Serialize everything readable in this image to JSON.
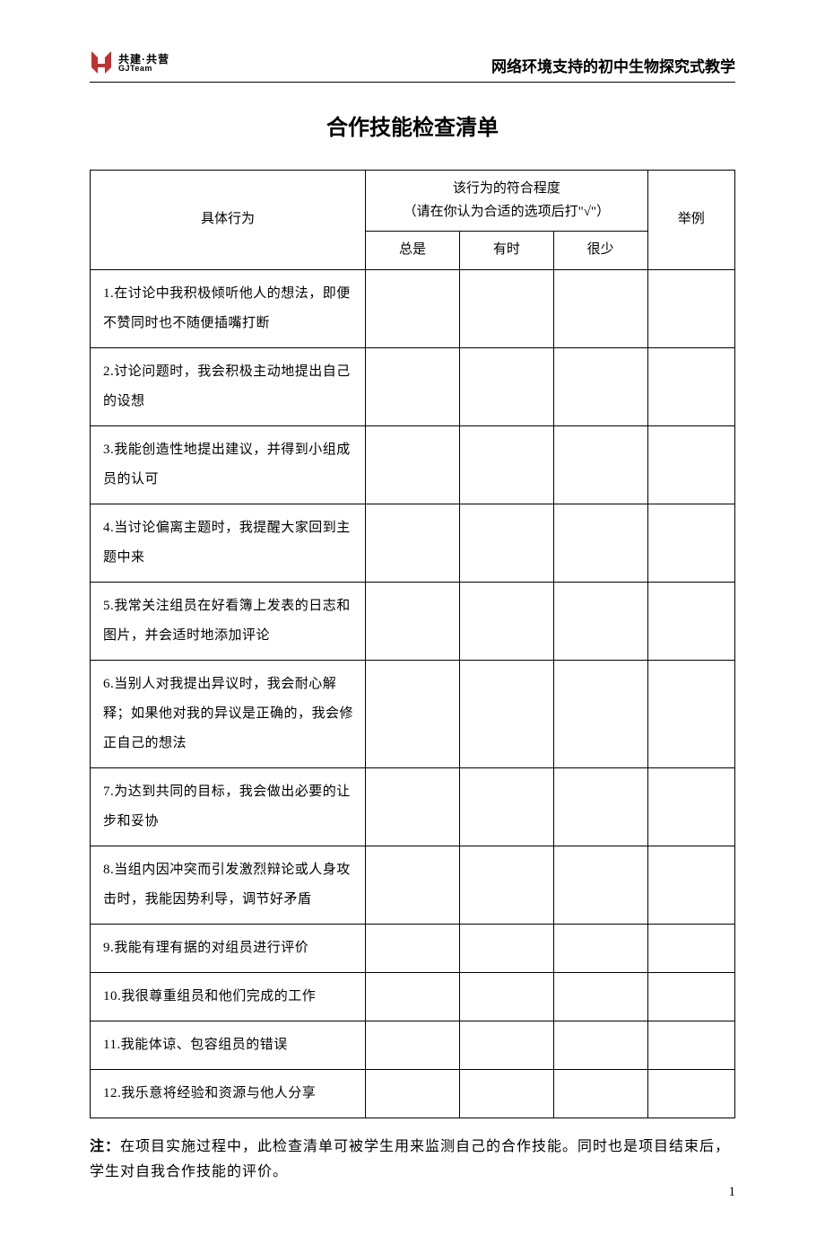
{
  "header": {
    "logo": {
      "text_top": "共建·共营",
      "text_bottom": "GJTeam",
      "mark_color": "#c52f2f"
    },
    "right_title": "网络环境支持的初中生物探究式教学"
  },
  "title": "合作技能检查清单",
  "table": {
    "headers": {
      "behavior": "具体行为",
      "degree_title": "该行为的符合程度",
      "degree_hint": "（请在你认为合适的选项后打\"√\"）",
      "opt_always": "总是",
      "opt_sometimes": "有时",
      "opt_rarely": "很少",
      "example": "举例"
    },
    "rows": [
      {
        "text": "1.在讨论中我积极倾听他人的想法，即便不赞同时也不随便插嘴打断",
        "always": "",
        "sometimes": "",
        "rarely": "",
        "example": ""
      },
      {
        "text": "2.讨论问题时，我会积极主动地提出自己的设想",
        "always": "",
        "sometimes": "",
        "rarely": "",
        "example": ""
      },
      {
        "text": "3.我能创造性地提出建议，并得到小组成员的认可",
        "always": "",
        "sometimes": "",
        "rarely": "",
        "example": ""
      },
      {
        "text": "4.当讨论偏离主题时，我提醒大家回到主题中来",
        "always": "",
        "sometimes": "",
        "rarely": "",
        "example": ""
      },
      {
        "text": "5.我常关注组员在好看簿上发表的日志和图片，并会适时地添加评论",
        "always": "",
        "sometimes": "",
        "rarely": "",
        "example": ""
      },
      {
        "text": "6.当别人对我提出异议时，我会耐心解释；如果他对我的异议是正确的，我会修正自己的想法",
        "always": "",
        "sometimes": "",
        "rarely": "",
        "example": ""
      },
      {
        "text": "7.为达到共同的目标，我会做出必要的让步和妥协",
        "always": "",
        "sometimes": "",
        "rarely": "",
        "example": ""
      },
      {
        "text": "8.当组内因冲突而引发激烈辩论或人身攻击时，我能因势利导，调节好矛盾",
        "always": "",
        "sometimes": "",
        "rarely": "",
        "example": ""
      },
      {
        "text": "9.我能有理有据的对组员进行评价",
        "always": "",
        "sometimes": "",
        "rarely": "",
        "example": ""
      },
      {
        "text": "10.我很尊重组员和他们完成的工作",
        "always": "",
        "sometimes": "",
        "rarely": "",
        "example": ""
      },
      {
        "text": "11.我能体谅、包容组员的错误",
        "always": "",
        "sometimes": "",
        "rarely": "",
        "example": ""
      },
      {
        "text": "12.我乐意将经验和资源与他人分享",
        "always": "",
        "sometimes": "",
        "rarely": "",
        "example": ""
      }
    ]
  },
  "note": {
    "label": "注：",
    "text": "在项目实施过程中，此检查清单可被学生用来监测自己的合作技能。同时也是项目结束后，学生对自我合作技能的评价。"
  },
  "page_number": "1",
  "colors": {
    "text": "#000000",
    "border": "#000000",
    "background": "#ffffff"
  }
}
